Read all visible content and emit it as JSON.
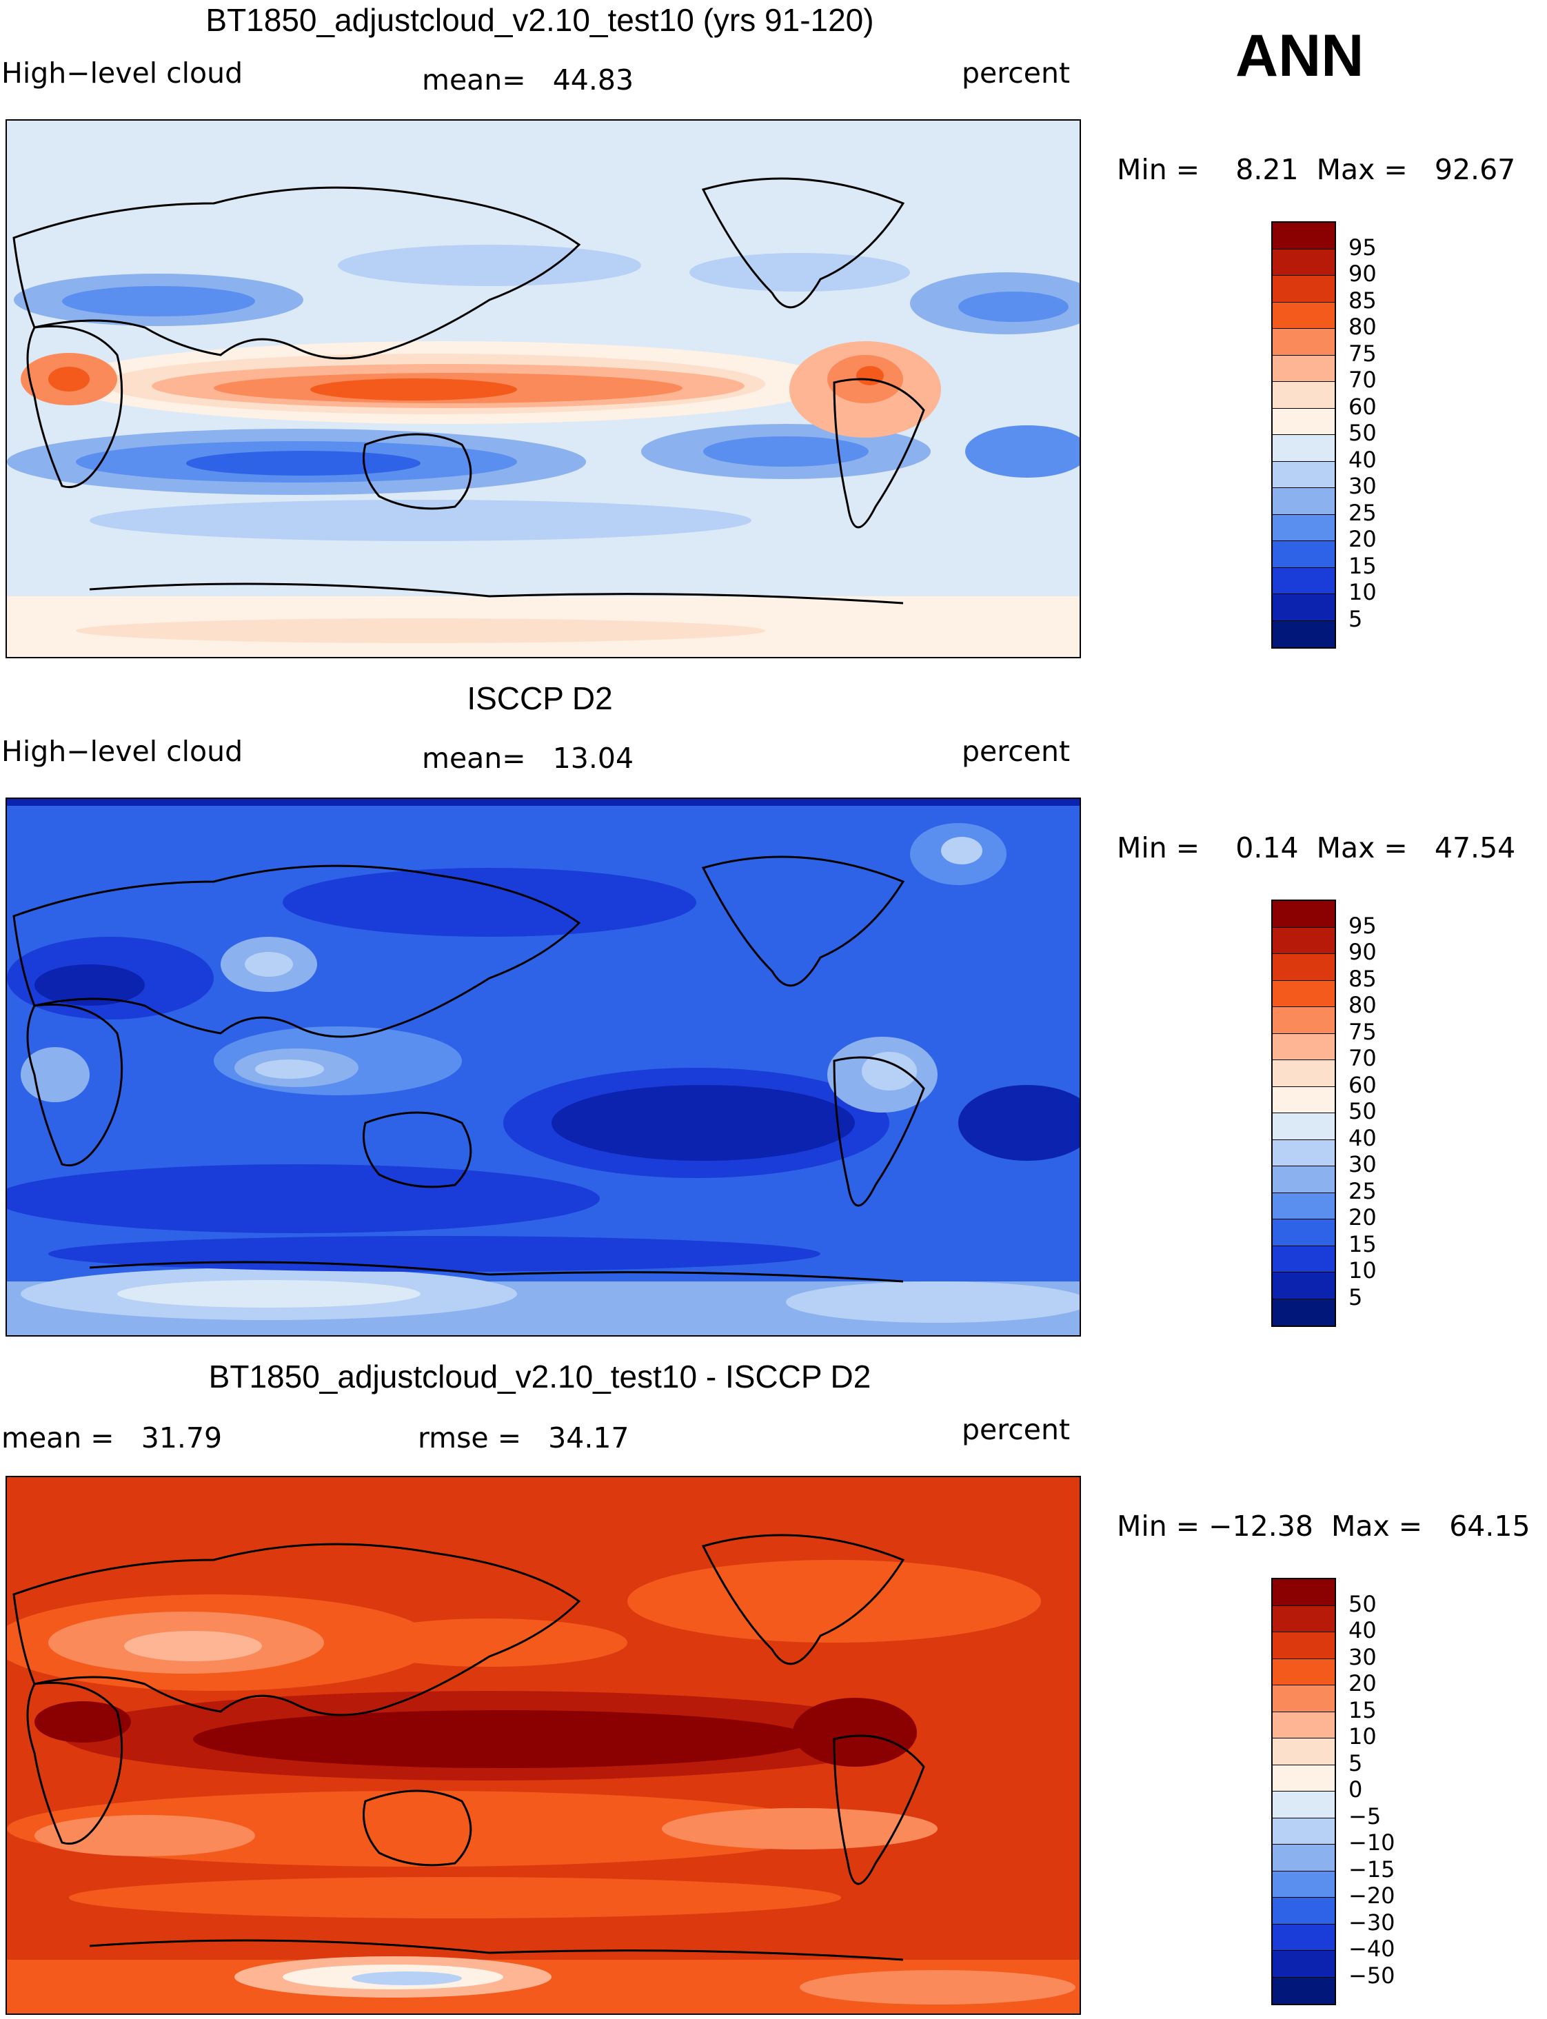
{
  "season": "ANN",
  "units": "percent",
  "panels": [
    {
      "title": "BT1850_adjustcloud_v2.10_test10 (yrs 91-120)",
      "left_label": "High−level cloud",
      "center_label": "mean=   44.83",
      "right_label": "percent",
      "minmax": "Min =    8.21  Max =   92.67",
      "colorbar_ticks": [
        "95",
        "90",
        "85",
        "80",
        "75",
        "70",
        "60",
        "50",
        "40",
        "30",
        "25",
        "20",
        "15",
        "10",
        "5"
      ],
      "colors": [
        "#8b0000",
        "#b81a0a",
        "#dc3a0e",
        "#f45a1c",
        "#fb8a5a",
        "#fdb594",
        "#fde0cc",
        "#fef1e6",
        "#dce9f7",
        "#b6d1f5",
        "#8cb1ef",
        "#5a8fef",
        "#2e63e8",
        "#1a3cd8",
        "#0c23b0",
        "#02177a"
      ]
    },
    {
      "title": "ISCCP D2",
      "left_label": "High−level cloud",
      "center_label": "mean=   13.04",
      "right_label": "percent",
      "minmax": "Min =    0.14  Max =   47.54",
      "colorbar_ticks": [
        "95",
        "90",
        "85",
        "80",
        "75",
        "70",
        "60",
        "50",
        "40",
        "30",
        "25",
        "20",
        "15",
        "10",
        "5"
      ],
      "colors": [
        "#8b0000",
        "#b81a0a",
        "#dc3a0e",
        "#f45a1c",
        "#fb8a5a",
        "#fdb594",
        "#fde0cc",
        "#fef1e6",
        "#dce9f7",
        "#b6d1f5",
        "#8cb1ef",
        "#5a8fef",
        "#2e63e8",
        "#1a3cd8",
        "#0c23b0",
        "#02177a"
      ]
    },
    {
      "title": "BT1850_adjustcloud_v2.10_test10 - ISCCP D2",
      "left_label": "mean =   31.79",
      "center_label": "rmse =   34.17",
      "right_label": "percent",
      "minmax": "Min = −12.38  Max =   64.15",
      "colorbar_ticks": [
        "50",
        "40",
        "30",
        "20",
        "15",
        "10",
        "5",
        "0",
        "−5",
        "−10",
        "−15",
        "−20",
        "−30",
        "−40",
        "−50"
      ],
      "colors": [
        "#8b0000",
        "#b81a0a",
        "#dc3a0e",
        "#f45a1c",
        "#fb8a5a",
        "#fdb594",
        "#fde0cc",
        "#fef1e6",
        "#dce9f7",
        "#b6d1f5",
        "#8cb1ef",
        "#5a8fef",
        "#2e63e8",
        "#1a3cd8",
        "#0c23b0",
        "#02177a"
      ]
    }
  ]
}
